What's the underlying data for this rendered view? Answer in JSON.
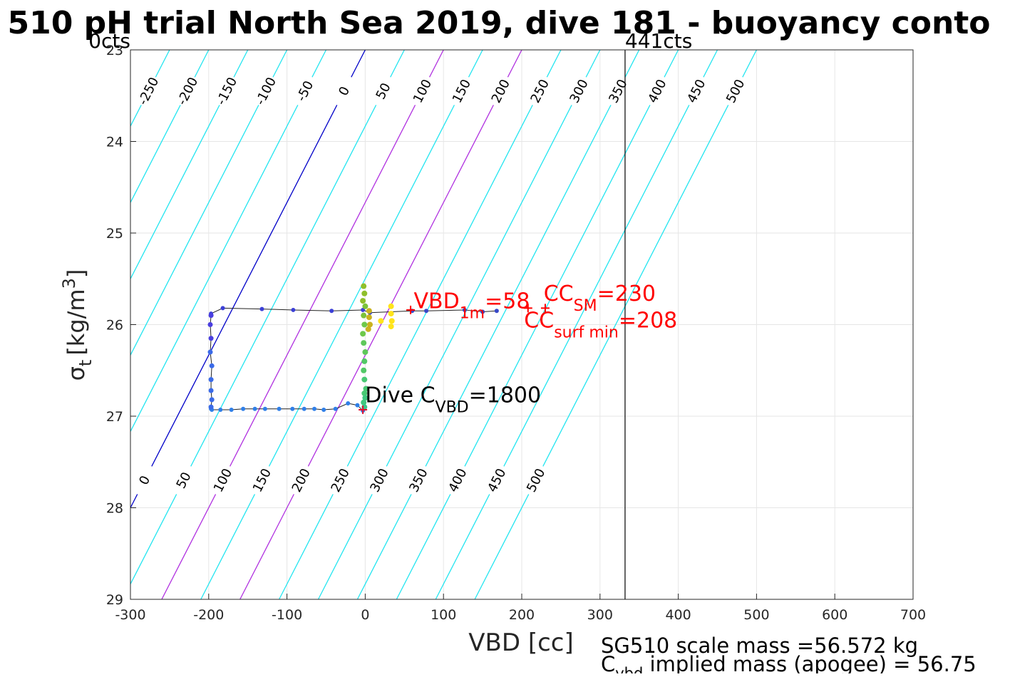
{
  "chart_data": {
    "type": "line",
    "title": "510 pH trial North Sea 2019, dive 181 - buoyancy conto",
    "xlabel": "VBD [cc]",
    "ylabel_sym": "σ",
    "ylabel_sub": "t",
    "ylabel_unit": "[kg/m",
    "ylabel_sup": "3",
    "ylabel_close": "]",
    "xlim": [
      -300,
      700
    ],
    "ylim": [
      23,
      29
    ],
    "y_reversed": true,
    "grid": true,
    "xticks": [
      -300,
      -200,
      -100,
      0,
      100,
      200,
      300,
      400,
      500,
      600,
      700
    ],
    "yticks": [
      23,
      24,
      25,
      26,
      27,
      28,
      29
    ],
    "contours": {
      "slope_vbd_per_sigma": -60,
      "spacing_cc": 50,
      "values": [
        -250,
        -200,
        -150,
        -100,
        -50,
        0,
        50,
        100,
        150,
        200,
        250,
        300,
        350,
        400,
        450,
        500
      ],
      "reference_x_at_top": 0,
      "zero_color": "#0000c8",
      "highlight_values": [
        100,
        200
      ],
      "highlight_color": "#b030e0",
      "default_color": "#22e5f0",
      "top_labels": [
        "-250",
        "-200",
        "-150",
        "-100",
        "-50",
        "0",
        "50",
        "100",
        "150",
        "200",
        "250",
        "300",
        "350",
        "400",
        "450",
        "500"
      ],
      "top_label_y": 23.45,
      "bottom_labels": [
        "0",
        "50",
        "100",
        "150",
        "200",
        "250",
        "300",
        "350",
        "400",
        "450",
        "500"
      ],
      "bottom_label_y": 27.7,
      "label_color": "#000000"
    },
    "vertical_markers": [
      {
        "x": -300,
        "label": "0cts"
      },
      {
        "x": 332,
        "label": "441cts"
      }
    ],
    "trace": {
      "line_color": "#222222",
      "x": [
        -197,
        -182,
        -132,
        -92,
        -43,
        -3,
        6,
        60,
        78,
        127,
        150,
        168
      ],
      "y": [
        25.88,
        25.82,
        25.83,
        25.84,
        25.85,
        25.84,
        25.87,
        25.85,
        25.85,
        25.84,
        25.86,
        25.85
      ],
      "bottom_x": [
        -197,
        -196,
        -185,
        -171,
        -156,
        -141,
        -128,
        -110,
        -93,
        -78,
        -65,
        -53,
        -38,
        -22,
        -10,
        -3
      ],
      "bottom_y": [
        26.92,
        26.93,
        26.93,
        26.93,
        26.92,
        26.92,
        26.92,
        26.92,
        26.92,
        26.92,
        26.92,
        26.93,
        26.92,
        26.86,
        26.88,
        26.94
      ],
      "left_x": [
        -197,
        -198,
        -197,
        -198,
        -196,
        -197,
        -197,
        -196,
        -197
      ],
      "left_y": [
        25.9,
        26.0,
        26.15,
        26.3,
        26.45,
        26.6,
        26.72,
        26.82,
        26.9
      ],
      "center_x": [
        -2,
        -1,
        -3,
        0,
        -2,
        -1,
        -3,
        -2,
        0,
        -1,
        -2,
        -1,
        1,
        -1,
        0,
        -2,
        -1
      ],
      "center_y": [
        25.58,
        25.66,
        25.74,
        25.8,
        25.9,
        26.0,
        26.1,
        26.2,
        26.3,
        26.4,
        26.5,
        26.6,
        26.7,
        26.75,
        26.8,
        26.85,
        26.9
      ],
      "yellow_x": [
        5,
        5,
        6,
        4,
        33,
        33,
        34,
        33,
        20
      ],
      "yellow_y": [
        25.85,
        25.92,
        26.0,
        26.05,
        25.8,
        25.88,
        25.96,
        26.02,
        25.96
      ]
    },
    "markers": [
      {
        "x": -3,
        "y": 26.93,
        "symbol": "+",
        "color": "#e01030"
      },
      {
        "x": 58,
        "y": 25.84,
        "symbol": "+",
        "color": "#ff0000"
      },
      {
        "x": 230,
        "y": 25.82,
        "symbol": "+",
        "color": "#ff0000"
      },
      {
        "x": 208,
        "y": 25.82,
        "symbol": "+",
        "color": "#ff0000"
      }
    ],
    "annotations": {
      "vbd_1m": {
        "main": "VBD",
        "sub": "1m",
        "rest": "=58",
        "x": 62,
        "y": 25.82,
        "color": "#ff0000"
      },
      "cc_sm": {
        "main": "CC",
        "sub": "SM",
        "rest": "=230",
        "x": 228,
        "y": 25.74,
        "color": "#ff0000"
      },
      "cc_surf": {
        "main": "CC",
        "sub": "surf min",
        "rest": "=208",
        "x": 203,
        "y": 26.03,
        "color": "#ff0000"
      },
      "dive_cvbd": {
        "main": "Dive C",
        "sub": "VBD",
        "rest": "=1800",
        "x": 0,
        "y": 26.85,
        "color": "#000000"
      }
    }
  },
  "footer": {
    "scale_mass": "SG510 scale mass =56.572 kg",
    "implied_main": "C",
    "implied_sub": "vbd",
    "implied_rest": " implied mass (apogee) = 56.75"
  }
}
